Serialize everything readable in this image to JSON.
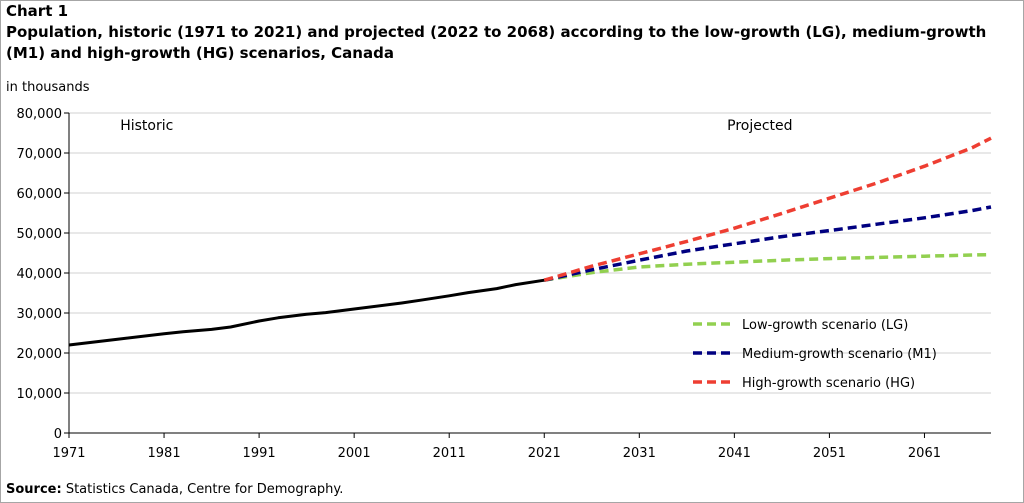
{
  "header": {
    "chart_label": "Chart 1",
    "title": "Population, historic (1971 to 2021) and projected (2022 to 2068) according to the low-growth (LG), medium-growth (M1) and high-growth (HG) scenarios, Canada",
    "unit": "in thousands"
  },
  "footer": {
    "source_label": "Source:",
    "source_text": " Statistics Canada, Centre for Demography."
  },
  "chart_data": {
    "type": "line",
    "annotations": [
      "Historic",
      "Projected"
    ],
    "x_ticks": [
      "1971",
      "1981",
      "1991",
      "2001",
      "2011",
      "2021",
      "2031",
      "2041",
      "2051",
      "2061"
    ],
    "y_ticks": [
      "0",
      "10,000",
      "20,000",
      "30,000",
      "40,000",
      "50,000",
      "60,000",
      "70,000",
      "80,000"
    ],
    "xlim": [
      1971,
      2068
    ],
    "ylim": [
      0,
      80000
    ],
    "grid": "horizontal",
    "legend_position": "bottom-right",
    "series": [
      {
        "key": "historic",
        "color": "#000000",
        "style": "solid",
        "x": [
          1971,
          1976,
          1981,
          1983,
          1986,
          1988,
          1991,
          1993,
          1996,
          1998,
          2001,
          2006,
          2008,
          2011,
          2013,
          2016,
          2018,
          2021
        ],
        "y": [
          22000,
          23400,
          24800,
          25300,
          25900,
          26500,
          28000,
          28800,
          29700,
          30100,
          31000,
          32500,
          33200,
          34300,
          35100,
          36100,
          37100,
          38200
        ]
      },
      {
        "name": "Low-growth scenario (LG)",
        "color": "#92d050",
        "style": "dashed",
        "x": [
          2021,
          2026,
          2031,
          2036,
          2041,
          2046,
          2051,
          2056,
          2061,
          2066,
          2068
        ],
        "y": [
          38200,
          40100,
          41500,
          42200,
          42700,
          43200,
          43600,
          43900,
          44200,
          44500,
          44600
        ]
      },
      {
        "name": "Medium-growth scenario (M1)",
        "color": "#000080",
        "style": "dashed",
        "x": [
          2021,
          2026,
          2031,
          2036,
          2041,
          2046,
          2051,
          2056,
          2061,
          2066,
          2068
        ],
        "y": [
          38200,
          40800,
          43200,
          45500,
          47300,
          49100,
          50600,
          52200,
          53800,
          55600,
          56500
        ]
      },
      {
        "name": "High-growth scenario (HG)",
        "color": "#ee3e32",
        "style": "dashed",
        "x": [
          2021,
          2026,
          2031,
          2036,
          2041,
          2046,
          2051,
          2056,
          2061,
          2066,
          2068
        ],
        "y": [
          38200,
          41700,
          44800,
          47900,
          51200,
          54900,
          58700,
          62500,
          66700,
          71300,
          73700
        ]
      }
    ]
  }
}
